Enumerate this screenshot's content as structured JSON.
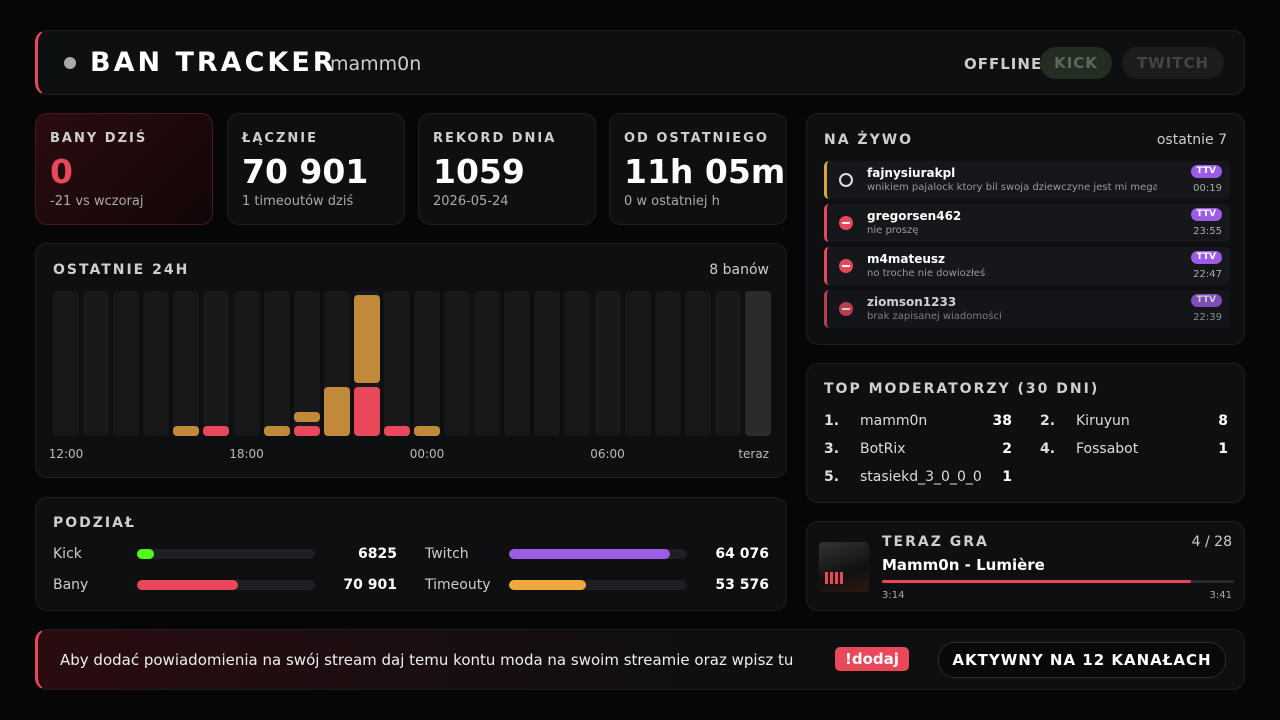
{
  "header": {
    "title": "BAN TRACKER",
    "user": "mamm0n",
    "status": "OFFLINE",
    "buttons": [
      "KICK",
      "TWITCH"
    ]
  },
  "stats": [
    {
      "label": "BANY DZIŚ",
      "value": "0",
      "sub": "-21 vs wczoraj"
    },
    {
      "label": "ŁĄCZNIE",
      "value": "70 901",
      "sub": "1 timeoutów dziś"
    },
    {
      "label": "REKORD DNIA",
      "value": "1059",
      "sub": "2026-05-24"
    },
    {
      "label": "OD OSTATNIEGO",
      "value": "11h 05m",
      "sub": "0 w ostatniej h"
    }
  ],
  "chart_data": {
    "type": "stacked-bar",
    "title": "OSTATNIE 24H",
    "summary": "8 banów",
    "categories": [
      "12:00",
      null,
      null,
      null,
      null,
      null,
      "18:00",
      null,
      null,
      null,
      null,
      null,
      "00:00",
      null,
      null,
      null,
      null,
      null,
      "06:00",
      null,
      null,
      null,
      null,
      "teraz"
    ],
    "series": [
      {
        "color": "#e8485a",
        "values": [
          0,
          0,
          0,
          0,
          0,
          1,
          0,
          0,
          1,
          0,
          5,
          1,
          0,
          0,
          0,
          0,
          0,
          0,
          0,
          0,
          0,
          0,
          0,
          0
        ]
      },
      {
        "color": "#c08a3a",
        "values": [
          0,
          0,
          0,
          0,
          1,
          0,
          0,
          1,
          1,
          5,
          9,
          0,
          1,
          0,
          0,
          0,
          0,
          0,
          0,
          0,
          0,
          0,
          0,
          0
        ]
      }
    ]
  },
  "breakdown": {
    "title": "PODZIAŁ",
    "items": [
      {
        "name": "Kick",
        "value": 6825,
        "color": "#53fc18"
      },
      {
        "name": "Twitch",
        "value": 64076,
        "value_label": "64 076",
        "color": "#9b5de5"
      },
      {
        "name": "Bany",
        "value": 70901,
        "value_label": "70 901",
        "color": "#e8485a"
      },
      {
        "name": "Timeouty",
        "value": 53576,
        "value_label": "53 576",
        "color": "#f0a93c"
      }
    ]
  },
  "live": {
    "title": "NA ŻYWO",
    "subtitle": "ostatnie 7",
    "entries": [
      {
        "kind": "timeout",
        "user": "fajnysiurakpl",
        "message": "wnikiem pajalock ktory bil swoja dziewczyne jest mi mega przykro",
        "platform": "TTV",
        "time": "00:19"
      },
      {
        "kind": "ban",
        "user": "gregorsen462",
        "message": "nie proszę",
        "platform": "TTV",
        "time": "23:55"
      },
      {
        "kind": "ban",
        "user": "m4mateusz",
        "message": "no troche nie dowiozłeś",
        "platform": "TTV",
        "time": "22:47"
      },
      {
        "kind": "ban",
        "user": "ziomson1233",
        "message": "brak zapisanej wiadomości",
        "platform": "TTV",
        "time": "22:39"
      }
    ]
  },
  "moderators": {
    "title": "TOP MODERATORZY (30 DNI)",
    "rows": [
      {
        "rank": "1.",
        "name": "mamm0n",
        "count": "38"
      },
      {
        "rank": "2.",
        "name": "Kiruyun",
        "count": "8"
      },
      {
        "rank": "3.",
        "name": "BotRix",
        "count": "2"
      },
      {
        "rank": "4.",
        "name": "Fossabot",
        "count": "1"
      },
      {
        "rank": "5.",
        "name": "stasiekd_3_0_0_0",
        "count": "1"
      }
    ]
  },
  "now_playing": {
    "label": "TERAZ GRA",
    "position": "4 / 28",
    "track": "Mamm0n - Lumière",
    "elapsed": "3:14",
    "duration": "3:41"
  },
  "footer": {
    "text": "Aby dodać powiadomienia na swój stream daj temu kontu moda na swoim streamie oraz wpisz tu",
    "command": "!dodaj",
    "badge": "AKTYWNY NA 12 KANAŁACH"
  }
}
